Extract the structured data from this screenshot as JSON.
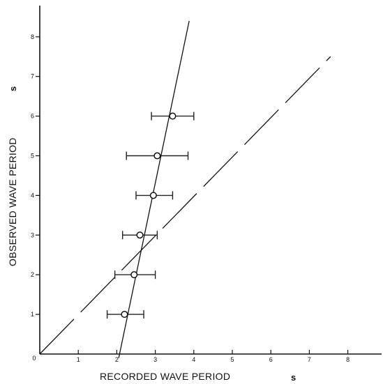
{
  "chart_data": {
    "type": "scatter",
    "title": "",
    "xlabel": "RECORDED WAVE PERIOD",
    "xunit": "s",
    "ylabel": "OBSERVED WAVE PERIOD",
    "yunit": "s",
    "xlim": [
      0,
      9
    ],
    "ylim": [
      0,
      9
    ],
    "origin_label": "0",
    "x_ticks": [
      "1",
      "2",
      "3",
      "4",
      "5",
      "6",
      "7",
      "8"
    ],
    "y_ticks": [
      "1",
      "2",
      "3",
      "4",
      "5",
      "6",
      "7",
      "8"
    ],
    "grid": false,
    "legend": "none",
    "points": [
      {
        "x": 2.2,
        "y": 1.0,
        "xerr_low": 1.75,
        "xerr_high": 2.7
      },
      {
        "x": 2.45,
        "y": 2.0,
        "xerr_low": 1.95,
        "xerr_high": 3.0
      },
      {
        "x": 2.6,
        "y": 3.0,
        "xerr_low": 2.15,
        "xerr_high": 3.05
      },
      {
        "x": 2.95,
        "y": 4.0,
        "xerr_low": 2.5,
        "xerr_high": 3.45
      },
      {
        "x": 3.05,
        "y": 5.0,
        "xerr_low": 2.25,
        "xerr_high": 3.85
      },
      {
        "x": 3.45,
        "y": 6.0,
        "xerr_low": 2.9,
        "xerr_high": 4.0
      }
    ],
    "fit_line": {
      "x": [
        2.05,
        3.88
      ],
      "y": [
        -0.1,
        8.4
      ]
    },
    "reference_line": {
      "x": [
        0,
        7.55
      ],
      "y": [
        0,
        7.5
      ],
      "style": "dashed"
    }
  }
}
